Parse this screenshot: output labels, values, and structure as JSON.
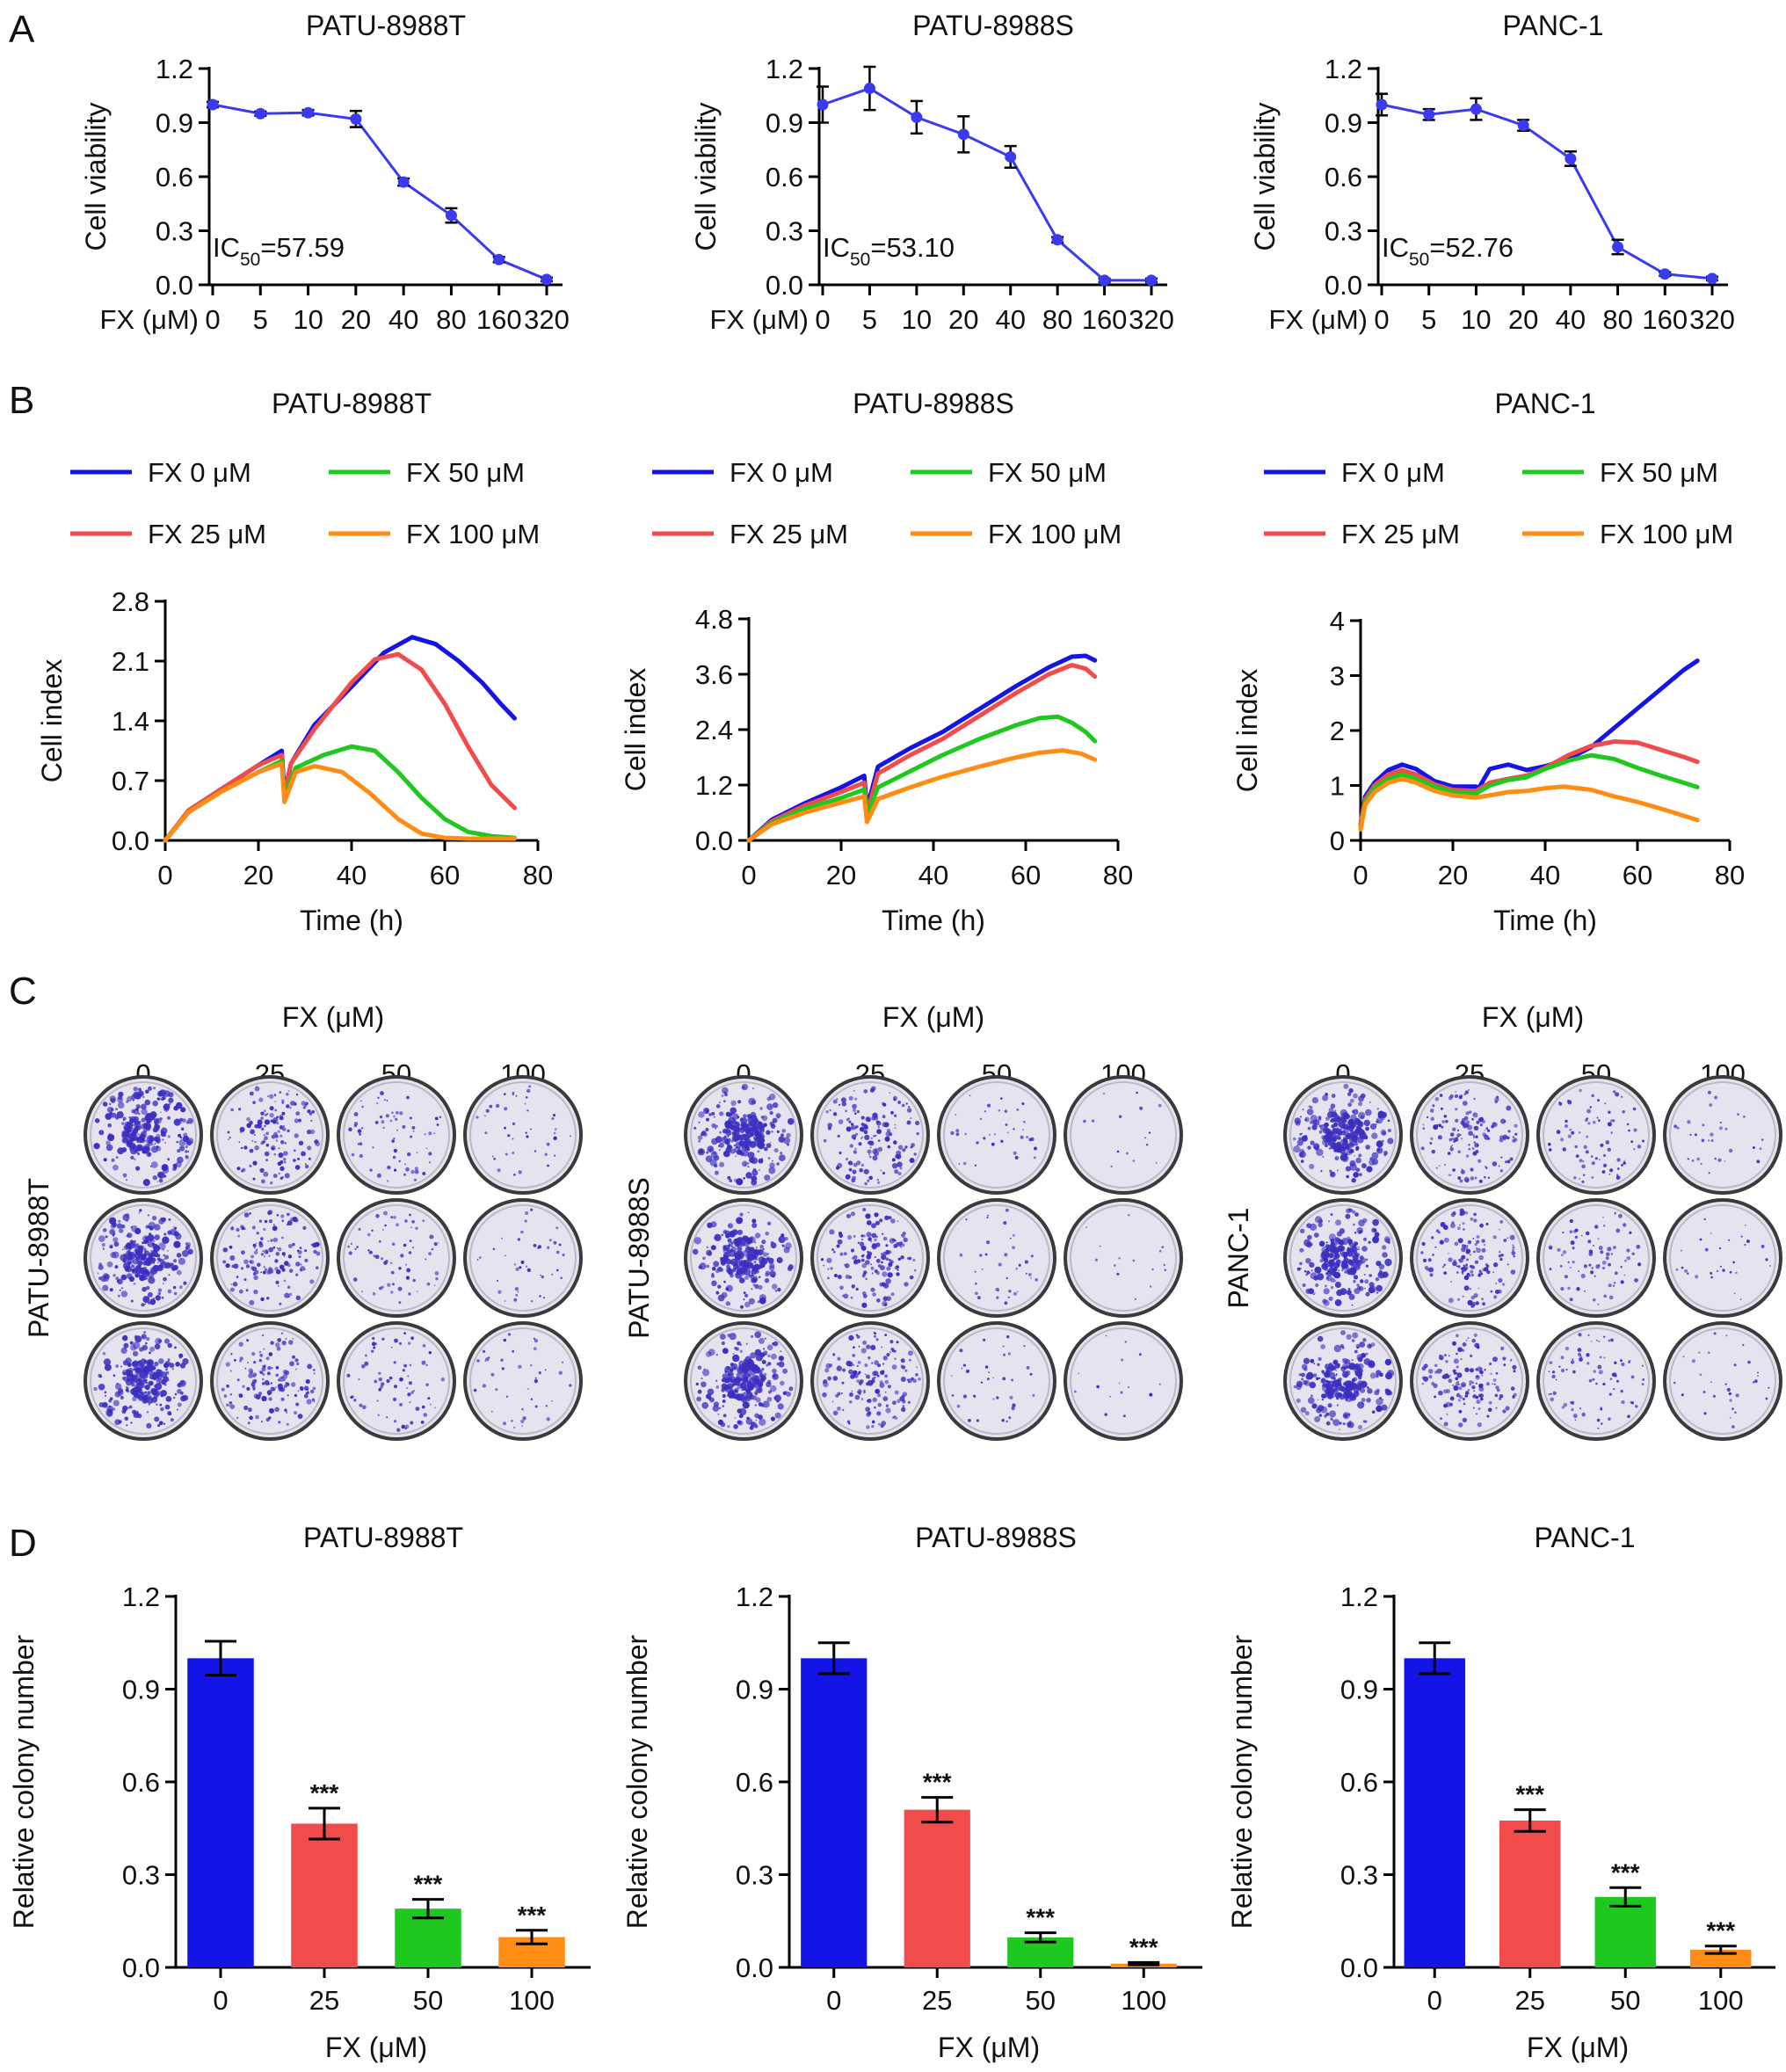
{
  "panel_letters": [
    "A",
    "B",
    "C",
    "D"
  ],
  "colors": {
    "blue": "#1414e6",
    "red": "#f24b4b",
    "green": "#1ec81e",
    "orange": "#ff8c14",
    "line_a": "#3a3af0",
    "dish_rim": "#3a3a3a",
    "dish_fill": "#e6e2ee",
    "colony": "#3a2fbf"
  },
  "chart_data": [
    {
      "panel": "A",
      "type": "line",
      "title": "PATU-8988T",
      "xlabel": "FX (μM)",
      "ylabel": "Cell viability",
      "categories": [
        "0",
        "5",
        "10",
        "20",
        "40",
        "80",
        "160",
        "320"
      ],
      "values": [
        1.0,
        0.95,
        0.955,
        0.92,
        0.57,
        0.385,
        0.14,
        0.03
      ],
      "errors": [
        0.015,
        0.012,
        0.015,
        0.045,
        0.02,
        0.04,
        0.015,
        0.01
      ],
      "ylim": [
        0,
        1.2
      ],
      "yticks": [
        "0.0",
        "0.3",
        "0.6",
        "0.9",
        "1.2"
      ],
      "ic50_prefix": "IC",
      "ic50_sub": "50",
      "ic50_value": "=57.59"
    },
    {
      "panel": "A",
      "type": "line",
      "title": "PATU-8988S",
      "xlabel": "FX (μM)",
      "ylabel": "Cell viability",
      "categories": [
        "0",
        "5",
        "10",
        "20",
        "40",
        "80",
        "160",
        "320"
      ],
      "values": [
        1.0,
        1.09,
        0.93,
        0.835,
        0.71,
        0.25,
        0.025,
        0.025
      ],
      "errors": [
        0.1,
        0.12,
        0.09,
        0.1,
        0.06,
        0.015,
        0.01,
        0.01
      ],
      "ylim": [
        0,
        1.2
      ],
      "yticks": [
        "0.0",
        "0.3",
        "0.6",
        "0.9",
        "1.2"
      ],
      "ic50_prefix": "IC",
      "ic50_sub": "50",
      "ic50_value": "=53.10"
    },
    {
      "panel": "A",
      "type": "line",
      "title": "PANC-1",
      "xlabel": "FX (μM)",
      "ylabel": "Cell viability",
      "categories": [
        "0",
        "5",
        "10",
        "20",
        "40",
        "80",
        "160",
        "320"
      ],
      "values": [
        1.0,
        0.945,
        0.975,
        0.885,
        0.7,
        0.21,
        0.06,
        0.035
      ],
      "errors": [
        0.06,
        0.03,
        0.06,
        0.03,
        0.04,
        0.04,
        0.01,
        0.01
      ],
      "ylim": [
        0,
        1.2
      ],
      "yticks": [
        "0.0",
        "0.3",
        "0.6",
        "0.9",
        "1.2"
      ],
      "ic50_prefix": "IC",
      "ic50_sub": "50",
      "ic50_value": "=52.76"
    },
    {
      "panel": "B",
      "type": "line",
      "title": "PATU-8988T",
      "xlabel": "Time (h)",
      "ylabel": "Cell index",
      "xlim": [
        0,
        80
      ],
      "xticks": [
        "0",
        "20",
        "40",
        "60",
        "80"
      ],
      "ylim": [
        0,
        2.8
      ],
      "yticks": [
        "0.0",
        "0.7",
        "1.4",
        "2.1",
        "2.8"
      ],
      "legend": [
        "FX 0 μM",
        "FX 50 μM",
        "FX 25 μM",
        "FX 100 μM"
      ],
      "series": [
        {
          "name": "FX 0 μM",
          "color": "blue",
          "x": [
            0,
            5,
            12,
            20,
            25,
            25.6,
            27,
            32,
            40,
            47,
            53,
            58,
            63,
            68,
            72,
            75
          ],
          "y": [
            0,
            0.35,
            0.6,
            0.88,
            1.05,
            0.55,
            0.9,
            1.35,
            1.8,
            2.2,
            2.38,
            2.3,
            2.1,
            1.85,
            1.6,
            1.43
          ]
        },
        {
          "name": "FX 25 μM",
          "color": "red",
          "x": [
            0,
            5,
            12,
            20,
            25,
            25.6,
            27,
            32,
            40,
            45,
            50,
            55,
            60,
            65,
            70,
            75
          ],
          "y": [
            0,
            0.35,
            0.6,
            0.88,
            1.0,
            0.5,
            0.9,
            1.3,
            1.85,
            2.12,
            2.18,
            2.0,
            1.6,
            1.1,
            0.65,
            0.38
          ]
        },
        {
          "name": "FX 50 μM",
          "color": "green",
          "x": [
            0,
            5,
            12,
            20,
            25,
            25.6,
            28,
            34,
            40,
            45,
            50,
            55,
            60,
            65,
            70,
            75
          ],
          "y": [
            0,
            0.33,
            0.57,
            0.8,
            0.93,
            0.5,
            0.85,
            1.0,
            1.1,
            1.05,
            0.8,
            0.5,
            0.25,
            0.1,
            0.05,
            0.03
          ]
        },
        {
          "name": "FX 100 μM",
          "color": "orange",
          "x": [
            0,
            5,
            12,
            20,
            25,
            25.6,
            28,
            32,
            38,
            44,
            50,
            55,
            60,
            65,
            70,
            75
          ],
          "y": [
            0,
            0.33,
            0.57,
            0.8,
            0.9,
            0.45,
            0.8,
            0.87,
            0.8,
            0.55,
            0.25,
            0.08,
            0.03,
            0.02,
            0.02,
            0.02
          ]
        }
      ]
    },
    {
      "panel": "B",
      "type": "line",
      "title": "PATU-8988S",
      "xlabel": "Time (h)",
      "ylabel": "Cell index",
      "xlim": [
        0,
        80
      ],
      "xticks": [
        "0",
        "20",
        "40",
        "60",
        "80"
      ],
      "ylim": [
        0,
        4.8
      ],
      "yticks": [
        "0.0",
        "1.2",
        "2.4",
        "3.6",
        "4.8"
      ],
      "legend": [
        "FX 0 μM",
        "FX 50 μM",
        "FX 25 μM",
        "FX 100 μM"
      ],
      "series": [
        {
          "name": "FX 0 μM",
          "color": "blue",
          "x": [
            0,
            5,
            12,
            20,
            25,
            25.6,
            28,
            35,
            42,
            50,
            58,
            65,
            70,
            73,
            75
          ],
          "y": [
            0,
            0.45,
            0.8,
            1.15,
            1.4,
            0.7,
            1.6,
            2.0,
            2.35,
            2.85,
            3.35,
            3.75,
            3.98,
            4.0,
            3.9
          ]
        },
        {
          "name": "FX 25 μM",
          "color": "red",
          "x": [
            0,
            5,
            12,
            20,
            25,
            25.6,
            28,
            35,
            42,
            50,
            58,
            65,
            70,
            73,
            75
          ],
          "y": [
            0,
            0.42,
            0.75,
            1.05,
            1.25,
            0.6,
            1.45,
            1.85,
            2.2,
            2.7,
            3.2,
            3.6,
            3.8,
            3.72,
            3.55
          ]
        },
        {
          "name": "FX 50 μM",
          "color": "green",
          "x": [
            0,
            5,
            12,
            20,
            25,
            25.6,
            28,
            35,
            42,
            50,
            58,
            63,
            67,
            70,
            73,
            75
          ],
          "y": [
            0,
            0.38,
            0.68,
            0.92,
            1.1,
            0.55,
            1.15,
            1.5,
            1.85,
            2.2,
            2.5,
            2.65,
            2.68,
            2.55,
            2.35,
            2.15
          ]
        },
        {
          "name": "FX 100 μM",
          "color": "orange",
          "x": [
            0,
            5,
            12,
            20,
            25,
            25.6,
            28,
            35,
            42,
            50,
            58,
            63,
            68,
            72,
            75
          ],
          "y": [
            0,
            0.35,
            0.6,
            0.82,
            0.95,
            0.4,
            0.9,
            1.15,
            1.38,
            1.6,
            1.8,
            1.9,
            1.95,
            1.88,
            1.75
          ]
        }
      ]
    },
    {
      "panel": "B",
      "type": "line",
      "title": "PANC-1",
      "xlabel": "Time (h)",
      "ylabel": "Cell index",
      "xlim": [
        0,
        80
      ],
      "xticks": [
        "0",
        "20",
        "40",
        "60",
        "80"
      ],
      "ylim": [
        0,
        4
      ],
      "yticks": [
        "0",
        "1",
        "2",
        "3",
        "4"
      ],
      "legend": [
        "FX 0 μM",
        "FX 50 μM",
        "FX 25 μM",
        "FX 100 μM"
      ],
      "series": [
        {
          "name": "FX 0 μM",
          "color": "blue",
          "x": [
            0,
            1,
            3,
            6,
            9,
            12,
            16,
            20,
            25,
            25.6,
            28,
            32,
            36,
            40,
            45,
            50,
            55,
            60,
            65,
            70,
            73
          ],
          "y": [
            0.3,
            0.8,
            1.05,
            1.28,
            1.38,
            1.3,
            1.08,
            0.98,
            0.98,
            0.95,
            1.3,
            1.38,
            1.28,
            1.35,
            1.48,
            1.7,
            2.05,
            2.4,
            2.75,
            3.1,
            3.27
          ]
        },
        {
          "name": "FX 25 μM",
          "color": "red",
          "x": [
            0,
            1,
            3,
            6,
            9,
            12,
            16,
            20,
            25,
            28,
            32,
            36,
            40,
            45,
            50,
            55,
            60,
            65,
            70,
            73
          ],
          "y": [
            0.3,
            0.75,
            1.0,
            1.2,
            1.28,
            1.2,
            1.02,
            0.92,
            0.9,
            1.05,
            1.12,
            1.18,
            1.32,
            1.55,
            1.72,
            1.8,
            1.78,
            1.65,
            1.52,
            1.43
          ]
        },
        {
          "name": "FX 50 μM",
          "color": "green",
          "x": [
            0,
            1,
            3,
            6,
            9,
            12,
            16,
            20,
            25,
            28,
            32,
            36,
            40,
            45,
            50,
            55,
            60,
            65,
            70,
            73
          ],
          "y": [
            0.25,
            0.7,
            0.95,
            1.12,
            1.2,
            1.12,
            0.98,
            0.88,
            0.85,
            1.0,
            1.1,
            1.15,
            1.3,
            1.45,
            1.55,
            1.48,
            1.32,
            1.18,
            1.05,
            0.97
          ]
        },
        {
          "name": "FX 100 μM",
          "color": "orange",
          "x": [
            0,
            1,
            3,
            6,
            9,
            12,
            16,
            20,
            25,
            28,
            32,
            36,
            40,
            44,
            50,
            55,
            60,
            65,
            70,
            73
          ],
          "y": [
            0.2,
            0.65,
            0.88,
            1.05,
            1.12,
            1.05,
            0.9,
            0.82,
            0.78,
            0.82,
            0.88,
            0.9,
            0.95,
            0.98,
            0.92,
            0.8,
            0.7,
            0.58,
            0.45,
            0.37
          ]
        }
      ]
    },
    {
      "panel": "D",
      "type": "bar",
      "title": "PATU-8988T",
      "xlabel": "FX (μM)",
      "ylabel": "Relative colony number",
      "categories": [
        "0",
        "25",
        "50",
        "100"
      ],
      "values": [
        1.0,
        0.465,
        0.19,
        0.098
      ],
      "errors": [
        0.055,
        0.05,
        0.03,
        0.022
      ],
      "significance": [
        "",
        "***",
        "***",
        "***"
      ],
      "colors": [
        "blue",
        "red",
        "green",
        "orange"
      ],
      "ylim": [
        0,
        1.2
      ],
      "yticks": [
        "0.0",
        "0.3",
        "0.6",
        "0.9",
        "1.2"
      ]
    },
    {
      "panel": "D",
      "type": "bar",
      "title": "PATU-8988S",
      "xlabel": "FX (μM)",
      "ylabel": "Relative colony number",
      "categories": [
        "0",
        "25",
        "50",
        "100"
      ],
      "values": [
        1.0,
        0.51,
        0.097,
        0.012
      ],
      "errors": [
        0.05,
        0.04,
        0.015,
        0.004
      ],
      "significance": [
        "",
        "***",
        "***",
        "***"
      ],
      "colors": [
        "blue",
        "red",
        "green",
        "orange"
      ],
      "ylim": [
        0,
        1.2
      ],
      "yticks": [
        "0.0",
        "0.3",
        "0.6",
        "0.9",
        "1.2"
      ]
    },
    {
      "panel": "D",
      "type": "bar",
      "title": "PANC-1",
      "xlabel": "FX (μM)",
      "ylabel": "Relative colony number",
      "categories": [
        "0",
        "25",
        "50",
        "100"
      ],
      "values": [
        1.0,
        0.475,
        0.228,
        0.057
      ],
      "errors": [
        0.05,
        0.035,
        0.03,
        0.012
      ],
      "significance": [
        "",
        "***",
        "***",
        "***"
      ],
      "colors": [
        "blue",
        "red",
        "green",
        "orange"
      ],
      "ylim": [
        0,
        1.2
      ],
      "yticks": [
        "0.0",
        "0.3",
        "0.6",
        "0.9",
        "1.2"
      ]
    }
  ],
  "colony_panel": {
    "header": "FX (μM)",
    "concentrations": [
      "0",
      "25",
      "50",
      "100"
    ],
    "groups": [
      {
        "cell_line": "PATU-8988T",
        "densities": [
          1.0,
          0.5,
          0.22,
          0.12
        ]
      },
      {
        "cell_line": "PATU-8988S",
        "densities": [
          1.0,
          0.55,
          0.1,
          0.02
        ]
      },
      {
        "cell_line": "PANC-1",
        "densities": [
          1.0,
          0.5,
          0.26,
          0.08
        ]
      }
    ]
  }
}
